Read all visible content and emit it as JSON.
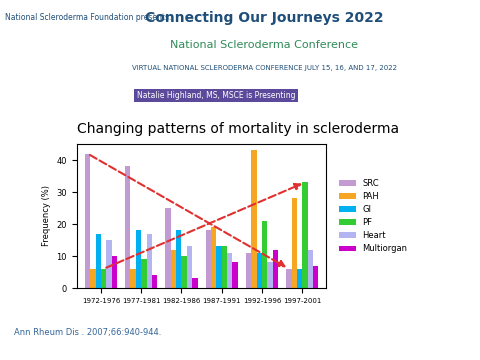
{
  "chart_data": {
    "type": "bar",
    "title": "Changing patterns of mortality in scleroderma",
    "y_label": "Frequency (%)",
    "categories": [
      "1972-1976",
      "1977-1981",
      "1982-1986",
      "1987-1991",
      "1992-1996",
      "1997-2001"
    ],
    "series": [
      {
        "name": "SRC",
        "color": "#c39bd3",
        "values": [
          42,
          38,
          25,
          18,
          11,
          6
        ]
      },
      {
        "name": "PAH",
        "color": "#f5a623",
        "values": [
          6,
          6,
          12,
          19,
          43,
          28
        ]
      },
      {
        "name": "GI",
        "color": "#00b0f0",
        "values": [
          17,
          18,
          18,
          13,
          11,
          6
        ]
      },
      {
        "name": "PF",
        "color": "#33cc33",
        "values": [
          6,
          9,
          10,
          13,
          21,
          33
        ]
      },
      {
        "name": "Heart",
        "color": "#b4b4f0",
        "values": [
          15,
          17,
          13,
          11,
          8,
          12
        ]
      },
      {
        "name": "Multiorgan",
        "color": "#cc00cc",
        "values": [
          10,
          4,
          3,
          8,
          12,
          7
        ]
      }
    ],
    "ylim": [
      0,
      45
    ],
    "yticks": [
      0,
      10,
      20,
      30,
      40
    ],
    "grid": false,
    "legend": "right",
    "annotations": [
      "Ann Rheum Dis . 2007;66:940-944.",
      "National Scleroderma Foundation presents:",
      "Connecting Our Journeys 2022",
      "National Scleroderma Conference",
      "VIRTUAL NATIONAL SCLERODERMA CONFERENCE JULY 15, 16, AND 17, 2022",
      "Natalie Highland, MS, MSCE is Presenting"
    ]
  }
}
